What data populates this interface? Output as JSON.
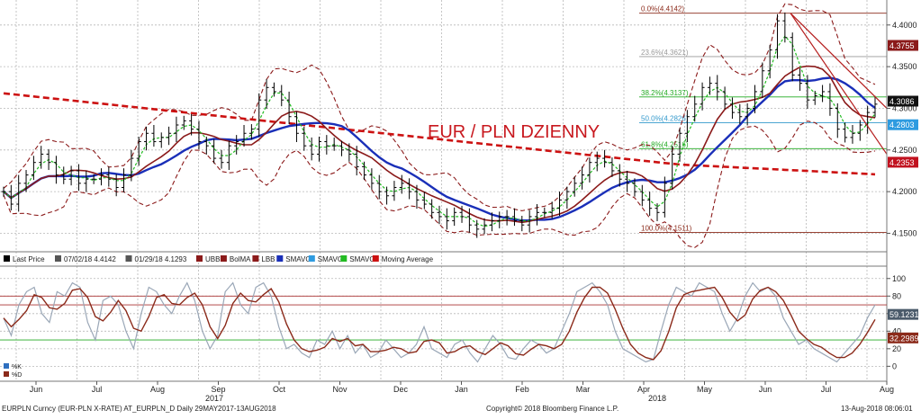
{
  "colors": {
    "ohlc": "#000000",
    "ubb": "#8b1a1a",
    "bollma": "#8b1a1a",
    "sma_long": "#cc1111",
    "sma_mid": "#1a2fb8",
    "sma_short": "#22bb22",
    "stoch_k": "#9aa7b7",
    "stoch_d": "#8b2a1a",
    "fib": "#8b2a1a",
    "trendline": "#b51d1d",
    "grid": "#b8b8b8",
    "last_price_badge": "#8b1a1a",
    "sma_mid_badge": "#1a2fb8",
    "sma_short_badge": "#2e9be0",
    "ma_badge": "#c1121f"
  },
  "chart_data": [
    {
      "type": "candlestick",
      "title": "EUR / PLN DZIENNY",
      "ylim": [
        4.13,
        4.43
      ],
      "yticks": [
        "4.1500",
        "4.2000",
        "4.2500",
        "4.3000",
        "4.3500",
        "4.4000"
      ],
      "xlabels": [
        "Jun",
        "Jul",
        "Aug",
        "Sep",
        "Oct",
        "Nov",
        "Dec",
        "Jan",
        "Feb",
        "Mar",
        "Apr",
        "May",
        "Jun",
        "Jul",
        "Aug"
      ],
      "year_labels": [
        "2017",
        "2018"
      ],
      "legend": [
        "Last Price",
        "07/02/18 4.4142",
        "01/29/18 4.1293",
        "UBB",
        "BolMA",
        "LBB",
        "SMAVG",
        "SMAVG",
        "SMAVG",
        "Moving Average"
      ],
      "fibonacci": [
        {
          "label": "0.0%(4.4142)",
          "value": 4.4142
        },
        {
          "label": "23.6%(4.3621)",
          "value": 4.3621
        },
        {
          "label": "38.2%(4.3137)",
          "value": 4.3137
        },
        {
          "label": "50.0%(4.2826)",
          "value": 4.2826
        },
        {
          "label": "61.8%(4.2516)",
          "value": 4.2516
        },
        {
          "label": "100.0%(4.1511)",
          "value": 4.1511
        }
      ],
      "value_badges": [
        {
          "label": "4.3755",
          "value": 4.3755
        },
        {
          "label": "4.3086",
          "value": 4.3086
        },
        {
          "label": "4.2803",
          "value": 4.2803
        },
        {
          "label": "4.2353",
          "value": 4.2353
        }
      ],
      "close_series": [
        4.2,
        4.185,
        4.21,
        4.22,
        4.235,
        4.245,
        4.235,
        4.22,
        4.215,
        4.225,
        4.21,
        4.215,
        4.215,
        4.22,
        4.215,
        4.205,
        4.22,
        4.24,
        4.26,
        4.27,
        4.26,
        4.265,
        4.27,
        4.28,
        4.285,
        4.275,
        4.26,
        4.255,
        4.24,
        4.235,
        4.255,
        4.26,
        4.27,
        4.275,
        4.31,
        4.325,
        4.32,
        4.31,
        4.29,
        4.27,
        4.255,
        4.245,
        4.26,
        4.255,
        4.255,
        4.25,
        4.245,
        4.23,
        4.22,
        4.21,
        4.2,
        4.195,
        4.205,
        4.21,
        4.2,
        4.19,
        4.185,
        4.175,
        4.17,
        4.165,
        4.175,
        4.17,
        4.16,
        4.155,
        4.16,
        4.165,
        4.17,
        4.17,
        4.165,
        4.16,
        4.17,
        4.175,
        4.175,
        4.18,
        4.19,
        4.2,
        4.21,
        4.22,
        4.235,
        4.24,
        4.235,
        4.225,
        4.215,
        4.21,
        4.2,
        4.19,
        4.18,
        4.175,
        4.21,
        4.245,
        4.27,
        4.29,
        4.305,
        4.325,
        4.33,
        4.32,
        4.305,
        4.295,
        4.29,
        4.3,
        4.32,
        4.345,
        4.37,
        4.405,
        4.385,
        4.34,
        4.33,
        4.31,
        4.315,
        4.32,
        4.3,
        4.275,
        4.265,
        4.27,
        4.28,
        4.295,
        4.305
      ]
    },
    {
      "type": "line",
      "title": "",
      "ylim": [
        -15,
        110
      ],
      "yticks": [
        "0",
        "20",
        "40",
        "60",
        "80",
        "100"
      ],
      "legend": [
        "%K",
        "%D"
      ],
      "badges": [
        {
          "label": "59.1231",
          "value": 59.1231
        },
        {
          "label": "32.2989",
          "value": 32.2989
        }
      ],
      "reference_lines": [
        80,
        70,
        30
      ],
      "k_series": [
        55,
        35,
        70,
        85,
        90,
        60,
        50,
        85,
        80,
        95,
        90,
        50,
        30,
        75,
        80,
        70,
        40,
        20,
        60,
        90,
        85,
        70,
        60,
        80,
        95,
        75,
        40,
        20,
        35,
        85,
        95,
        70,
        60,
        90,
        95,
        80,
        45,
        20,
        25,
        15,
        10,
        30,
        25,
        40,
        20,
        35,
        15,
        25,
        10,
        15,
        30,
        20,
        10,
        15,
        25,
        45,
        20,
        15,
        10,
        25,
        30,
        15,
        5,
        20,
        35,
        25,
        10,
        8,
        20,
        30,
        25,
        15,
        20,
        40,
        60,
        85,
        90,
        95,
        85,
        70,
        40,
        20,
        15,
        10,
        5,
        8,
        40,
        70,
        90,
        85,
        80,
        95,
        90,
        85,
        60,
        40,
        55,
        80,
        95,
        85,
        90,
        80,
        55,
        40,
        25,
        30,
        20,
        15,
        10,
        5,
        15,
        25,
        35,
        55,
        70
      ]
    }
  ],
  "footer": {
    "left": "EURPLN Curncy (EUR-PLN X-RATE) AT_EURPLN_D  Daily 29MAY2017-13AUG2018",
    "center": "Copyright© 2018 Bloomberg Finance L.P.",
    "right": "13-Aug-2018 08:06:01"
  }
}
